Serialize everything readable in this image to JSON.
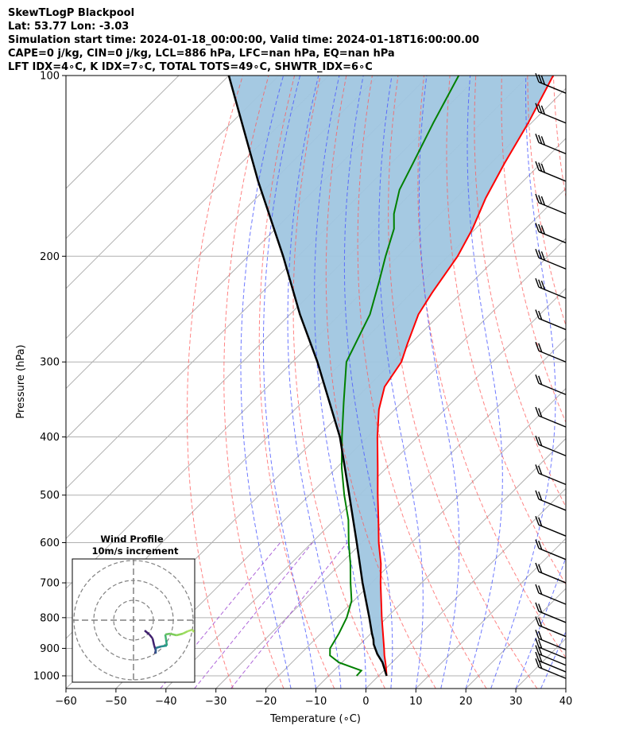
{
  "header": {
    "line1": "SkewTLogP Blackpool",
    "line2": "Lat: 53.77   Lon: -3.03",
    "line3": "Simulation start time: 2024-01-18_00:00:00, Valid time: 2024-01-18T16:00:00.00",
    "line4": "CAPE=0 j/kg, CIN=0 j/kg, LCL=886 hPa, LFC=nan hPa, EQ=nan hPa",
    "line5": "LFT IDX=4∘C, K IDX=7∘C, TOTAL TOTS=49∘C, SHWTR_IDX=6∘C"
  },
  "chart_data": {
    "type": "line",
    "xlabel": "Temperature (∘C)",
    "ylabel": "Pressure (hPa)",
    "xlim": [
      -60,
      40
    ],
    "ylim": [
      1050,
      100
    ],
    "yscale": "log",
    "skew": "45-degree skewed isotherms",
    "x_ticks": [
      "−60",
      "−50",
      "−40",
      "−30",
      "−20",
      "−10",
      "0",
      "10",
      "20",
      "30",
      "40"
    ],
    "x_tick_values": [
      -60,
      -50,
      -40,
      -30,
      -20,
      -10,
      0,
      10,
      20,
      30,
      40
    ],
    "y_ticks": [
      "100",
      "200",
      "300",
      "400",
      "500",
      "600",
      "700",
      "800",
      "900",
      "1000"
    ],
    "y_tick_values": [
      100,
      200,
      300,
      400,
      500,
      600,
      700,
      800,
      900,
      1000
    ],
    "colors": {
      "temperature": "#ff0000",
      "dewpoint": "#008000",
      "parcel": "#000000",
      "shade": "#a0c6e0",
      "dry_adiabat": "#ff6b6b",
      "moist_adiabat": "#5560ff",
      "isotherm": "#b0b0b0"
    },
    "series": [
      {
        "key": "temperature",
        "points": [
          [
            1000,
            1.6
          ],
          [
            970,
            -0.1
          ],
          [
            950,
            -1.3
          ],
          [
            925,
            -2.9
          ],
          [
            900,
            -4.4
          ],
          [
            850,
            -7.6
          ],
          [
            800,
            -11
          ],
          [
            700,
            -18.2
          ],
          [
            650,
            -22
          ],
          [
            600,
            -26.6
          ],
          [
            550,
            -31.2
          ],
          [
            500,
            -36.3
          ],
          [
            450,
            -41.8
          ],
          [
            400,
            -48
          ],
          [
            360,
            -53.2
          ],
          [
            330,
            -56.6
          ],
          [
            300,
            -58.2
          ],
          [
            280,
            -60.6
          ],
          [
            250,
            -64.3
          ],
          [
            230,
            -65.9
          ],
          [
            200,
            -68.1
          ],
          [
            180,
            -70.6
          ],
          [
            160,
            -74.1
          ],
          [
            140,
            -77.3
          ],
          [
            120,
            -80.6
          ],
          [
            100,
            -85.1
          ]
        ]
      },
      {
        "key": "dewpoint",
        "points": [
          [
            1000,
            -4.4
          ],
          [
            980,
            -4.5
          ],
          [
            950,
            -10.6
          ],
          [
            925,
            -13.8
          ],
          [
            900,
            -15.2
          ],
          [
            850,
            -16.4
          ],
          [
            800,
            -18
          ],
          [
            750,
            -20.4
          ],
          [
            700,
            -24.2
          ],
          [
            650,
            -28.1
          ],
          [
            600,
            -32.6
          ],
          [
            550,
            -37.2
          ],
          [
            500,
            -43
          ],
          [
            450,
            -49
          ],
          [
            400,
            -55.1
          ],
          [
            350,
            -61.7
          ],
          [
            300,
            -69.2
          ],
          [
            250,
            -74
          ],
          [
            220,
            -78.8
          ],
          [
            200,
            -82.5
          ],
          [
            180,
            -86.3
          ],
          [
            170,
            -89.3
          ],
          [
            155,
            -93
          ],
          [
            140,
            -95.6
          ],
          [
            120,
            -99.6
          ],
          [
            100,
            -104
          ]
        ]
      },
      {
        "key": "parcel",
        "points": [
          [
            1000,
            1.6
          ],
          [
            950,
            -1.9
          ],
          [
            920,
            -4.6
          ],
          [
            886,
            -7.3
          ],
          [
            870,
            -8.3
          ],
          [
            850,
            -9.8
          ],
          [
            800,
            -13.5
          ],
          [
            700,
            -21.8
          ],
          [
            600,
            -31
          ],
          [
            500,
            -42
          ],
          [
            400,
            -55.5
          ],
          [
            300,
            -75
          ],
          [
            250,
            -88
          ],
          [
            200,
            -103
          ],
          [
            150,
            -123
          ],
          [
            100,
            -150
          ]
        ]
      }
    ],
    "wind_barbs_pressure_hPa": [
      1010,
      985,
      960,
      935,
      905,
      860,
      815,
      760,
      700,
      640,
      585,
      530,
      480,
      430,
      385,
      340,
      300,
      265,
      235,
      210,
      190,
      170,
      150,
      135,
      120,
      107
    ],
    "inset": {
      "title": "Wind Profile",
      "subtitle": "10m/s increment",
      "type": "hodograph"
    }
  }
}
